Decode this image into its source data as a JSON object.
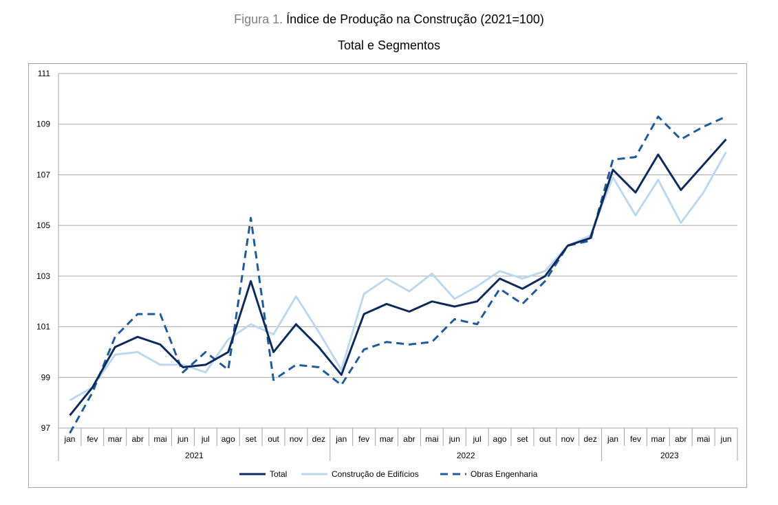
{
  "figure": {
    "prefix": "Figura 1.",
    "title": "Índice de Produção na Construção (2021=100)",
    "subtitle": "Total e Segmentos"
  },
  "chart_data": {
    "type": "line",
    "ylim": [
      97,
      111
    ],
    "yticks": [
      97,
      99,
      101,
      103,
      105,
      107,
      109,
      111
    ],
    "grid": true,
    "legend_position": "bottom",
    "categories": [
      "jan",
      "fev",
      "mar",
      "abr",
      "mai",
      "jun",
      "jul",
      "ago",
      "set",
      "out",
      "nov",
      "dez",
      "jan",
      "fev",
      "mar",
      "abr",
      "mai",
      "jun",
      "jul",
      "ago",
      "set",
      "out",
      "nov",
      "dez",
      "jan",
      "fev",
      "mar",
      "abr",
      "mai",
      "jun"
    ],
    "years": [
      {
        "label": "2021",
        "count": 12
      },
      {
        "label": "2022",
        "count": 12
      },
      {
        "label": "2023",
        "count": 6
      }
    ],
    "series": [
      {
        "name": "Total",
        "color": "#0e2a5c",
        "style": "solid",
        "values": [
          97.5,
          98.6,
          100.2,
          100.6,
          100.3,
          99.4,
          99.5,
          100.0,
          102.8,
          100.0,
          101.1,
          100.2,
          99.1,
          101.5,
          101.9,
          101.6,
          102.0,
          101.8,
          102.0,
          102.9,
          102.5,
          103.0,
          104.2,
          104.5,
          107.2,
          106.3,
          107.8,
          106.4,
          107.4,
          108.4
        ]
      },
      {
        "name": "Construção de Edifícios",
        "color": "#bdd7ee",
        "style": "solid",
        "values": [
          98.1,
          98.6,
          99.9,
          100.0,
          99.5,
          99.5,
          99.2,
          100.5,
          101.1,
          100.7,
          102.2,
          100.8,
          99.3,
          102.3,
          102.9,
          102.4,
          103.1,
          102.1,
          102.6,
          103.2,
          102.9,
          103.2,
          104.2,
          104.6,
          106.9,
          105.4,
          106.8,
          105.1,
          106.3,
          107.9
        ]
      },
      {
        "name": "Obras Engenharia",
        "color": "#1f5a99",
        "style": "dashed",
        "values": [
          96.8,
          98.4,
          100.6,
          101.5,
          101.5,
          99.2,
          100.0,
          99.3,
          105.3,
          98.9,
          99.5,
          99.4,
          98.7,
          100.1,
          100.4,
          100.3,
          100.4,
          101.3,
          101.1,
          102.5,
          101.9,
          102.8,
          104.2,
          104.4,
          107.6,
          107.7,
          109.3,
          108.4,
          108.9,
          109.3
        ]
      }
    ]
  }
}
